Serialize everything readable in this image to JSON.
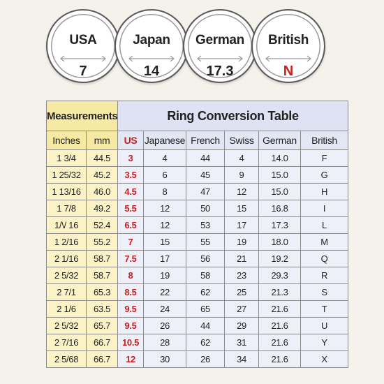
{
  "badges": [
    {
      "name": "USA",
      "value": "7",
      "accent": false
    },
    {
      "name": "Japan",
      "value": "14",
      "accent": false
    },
    {
      "name": "German",
      "value": "17.3",
      "accent": false
    },
    {
      "name": "British",
      "value": "N",
      "accent": true
    }
  ],
  "table": {
    "measurements_header": "Measurements",
    "title": "Ring Conversion Table",
    "columns": [
      "Inches",
      "mm",
      "US",
      "Japanese",
      "French",
      "Swiss",
      "German",
      "British"
    ],
    "rows": [
      [
        "1 3/4",
        "44.5",
        "3",
        "4",
        "44",
        "4",
        "14.0",
        "F"
      ],
      [
        "1 25/32",
        "45.2",
        "3.5",
        "6",
        "45",
        "9",
        "15.0",
        "G"
      ],
      [
        "1 13/16",
        "46.0",
        "4.5",
        "8",
        "47",
        "12",
        "15.0",
        "H"
      ],
      [
        "1 7/8",
        "49.2",
        "5.5",
        "12",
        "50",
        "15",
        "16.8",
        "I"
      ],
      [
        "1/\\/ 16",
        "52.4",
        "6.5",
        "12",
        "53",
        "17",
        "17.3",
        "L"
      ],
      [
        "1 2/16",
        "55.2",
        "7",
        "15",
        "55",
        "19",
        "18.0",
        "M"
      ],
      [
        "2 1/16",
        "58.7",
        "7.5",
        "17",
        "56",
        "21",
        "19.2",
        "Q"
      ],
      [
        "2 5/32",
        "58.7",
        "8",
        "19",
        "58",
        "23",
        "29.3",
        "R"
      ],
      [
        "2 7/1",
        "65.3",
        "8.5",
        "22",
        "62",
        "25",
        "21.3",
        "S"
      ],
      [
        "2 1/6",
        "63.5",
        "9.5",
        "24",
        "65",
        "27",
        "21.6",
        "T"
      ],
      [
        "2 5/32",
        "65.7",
        "9.5",
        "26",
        "44",
        "29",
        "21.6",
        "U"
      ],
      [
        "2 7/16",
        "66.7",
        "10.5",
        "28",
        "62",
        "31",
        "21.6",
        "Y"
      ],
      [
        "2 5/68",
        "66.7",
        "12",
        "30",
        "26",
        "34",
        "21.6",
        "X"
      ]
    ]
  },
  "colors": {
    "accent_red": "#c81e1e",
    "measurement_yellow": "#f6e9a3",
    "table_blue": "#dfe2f2",
    "background": "#f5f2ec"
  }
}
